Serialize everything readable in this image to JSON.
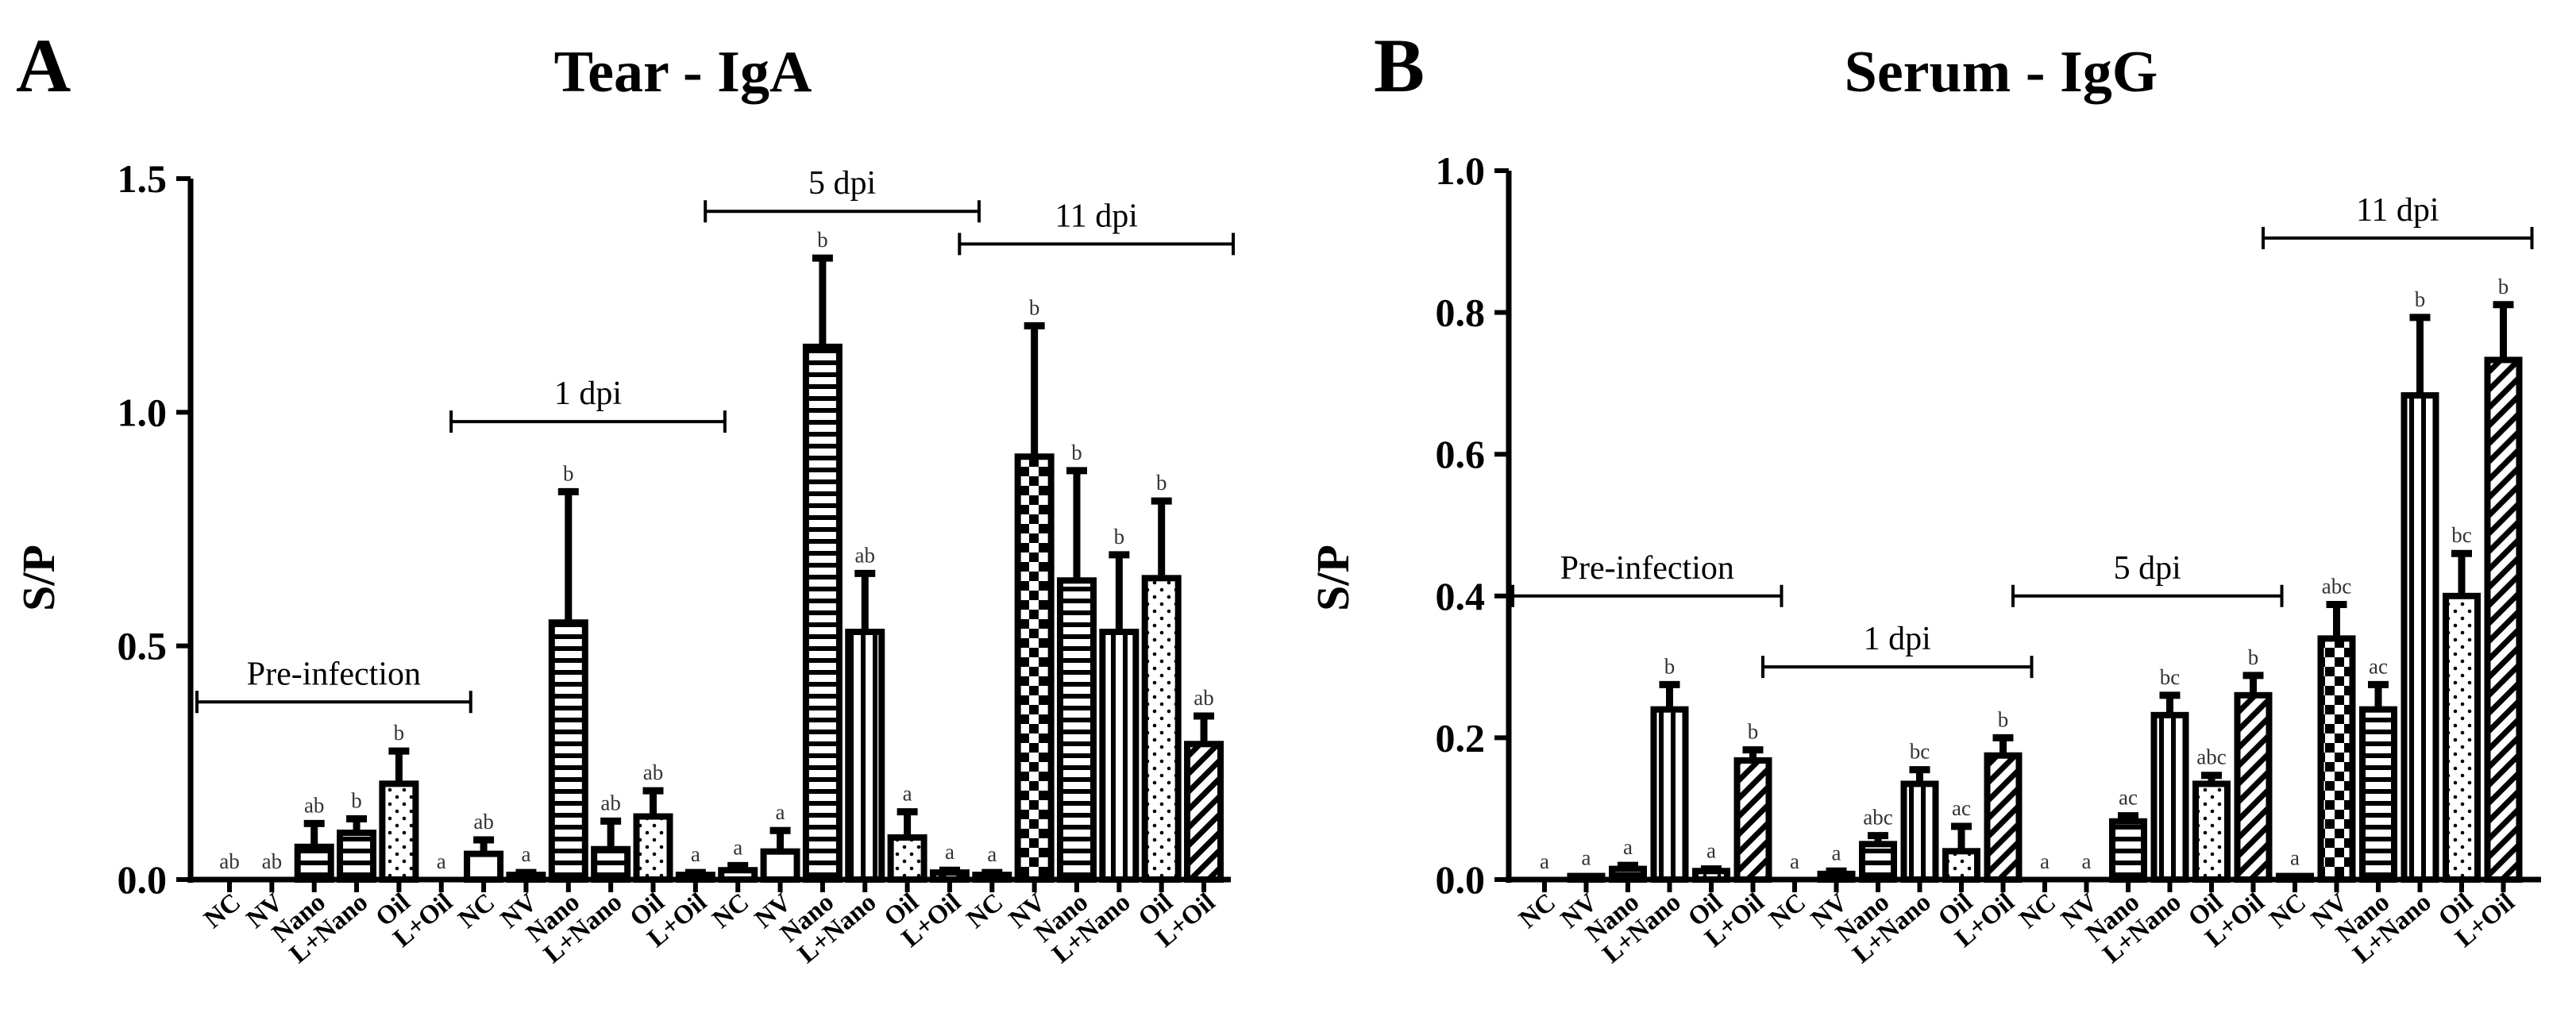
{
  "chart_data": [
    {
      "type": "bar",
      "panel": "A",
      "title": "Tear - IgA",
      "ylabel": "S/P",
      "xlabel": "",
      "ylim": [
        0,
        1.5
      ],
      "yticks": [
        "0.0",
        "0.5",
        "1.0",
        "1.5"
      ],
      "ytick_values": [
        0,
        0.5,
        1.0,
        1.5
      ],
      "categories": [
        "NC",
        "NV",
        "Nano",
        "L+Nano",
        "Oil",
        "L+Oil",
        "NC",
        "NV",
        "Nano",
        "L+Nano",
        "Oil",
        "L+Oil",
        "NC",
        "NV",
        "Nano",
        "L+Nano",
        "Oil",
        "L+Oil",
        "NC",
        "NV",
        "Nano",
        "L+Nano",
        "Oil",
        "L+Oil"
      ],
      "values": [
        0,
        0,
        0.07,
        0.1,
        0.205,
        0,
        0.055,
        0.01,
        0.55,
        0.065,
        0.135,
        0.01,
        0.02,
        0.06,
        1.14,
        0.53,
        0.09,
        0.015,
        0.01,
        0.905,
        0.64,
        0.53,
        0.645,
        0.29
      ],
      "errors": [
        0,
        0,
        0.05,
        0.03,
        0.07,
        0,
        0.03,
        0.005,
        0.28,
        0.06,
        0.055,
        0.005,
        0.01,
        0.045,
        0.19,
        0.125,
        0.055,
        0.005,
        0.005,
        0.28,
        0.235,
        0.165,
        0.165,
        0.06
      ],
      "significance": [
        "ab",
        "ab",
        "ab",
        "b",
        "b",
        "a",
        "ab",
        "a",
        "b",
        "ab",
        "ab",
        "a",
        "a",
        "a",
        "b",
        "ab",
        "a",
        "a",
        "a",
        "b",
        "b",
        "b",
        "b",
        "ab"
      ],
      "patterns": [
        "none",
        "none",
        "hlines",
        "hlines",
        "dots",
        "diag",
        "none",
        "none",
        "hlines",
        "hlines",
        "dots",
        "diag",
        "none",
        "none",
        "hlines",
        "vlines",
        "dots",
        "diag",
        "none",
        "check",
        "hlines",
        "vlines",
        "dots",
        "diag"
      ],
      "groups": [
        {
          "label": "Pre-infection",
          "start": 0,
          "end": 5,
          "level": 0.38
        },
        {
          "label": "1 dpi",
          "start": 6,
          "end": 11,
          "level": 0.98
        },
        {
          "label": "5 dpi",
          "start": 12,
          "end": 17,
          "level": 1.43
        },
        {
          "label": "11 dpi",
          "start": 18,
          "end": 23,
          "level": 1.36
        }
      ]
    },
    {
      "type": "bar",
      "panel": "B",
      "title": "Serum - IgG",
      "ylabel": "S/P",
      "xlabel": "",
      "ylim": [
        0,
        1.0
      ],
      "yticks": [
        "0.0",
        "0.2",
        "0.4",
        "0.6",
        "0.8",
        "1.0"
      ],
      "ytick_values": [
        0,
        0.2,
        0.4,
        0.6,
        0.8,
        1.0
      ],
      "categories": [
        "NC",
        "NV",
        "Nano",
        "L+Nano",
        "Oil",
        "L+Oil",
        "NC",
        "NV",
        "Nano",
        "L+Nano",
        "Oil",
        "L+Oil",
        "NC",
        "NV",
        "Nano",
        "L+Nano",
        "Oil",
        "L+Oil",
        "NC",
        "NV",
        "Nano",
        "L+Nano",
        "Oil",
        "L+Oil"
      ],
      "values": [
        0,
        0.005,
        0.015,
        0.24,
        0.012,
        0.168,
        0,
        0.008,
        0.05,
        0.135,
        0.04,
        0.175,
        0,
        0,
        0.082,
        0.232,
        0.135,
        0.26,
        0.005,
        0.34,
        0.24,
        0.683,
        0.4,
        0.733
      ],
      "errors": [
        0,
        0,
        0.005,
        0.035,
        0.003,
        0.015,
        0,
        0.004,
        0.012,
        0.02,
        0.035,
        0.025,
        0,
        0,
        0.008,
        0.028,
        0.012,
        0.028,
        0,
        0.048,
        0.035,
        0.11,
        0.06,
        0.078
      ],
      "significance": [
        "a",
        "a",
        "a",
        "b",
        "a",
        "b",
        "a",
        "a",
        "abc",
        "bc",
        "ac",
        "b",
        "a",
        "a",
        "ac",
        "bc",
        "abc",
        "b",
        "a",
        "abc",
        "ac",
        "b",
        "bc",
        "b"
      ],
      "patterns": [
        "none",
        "none",
        "hlines",
        "vlines",
        "dots",
        "diag",
        "none",
        "none",
        "hlines",
        "vlines",
        "dots",
        "diag",
        "none",
        "none",
        "hlines",
        "vlines",
        "dots",
        "diag",
        "none",
        "check",
        "hlines",
        "vlines",
        "dots",
        "diag"
      ],
      "groups": [
        {
          "label": "Pre-infection",
          "start": 0,
          "end": 5,
          "level": 0.4
        },
        {
          "label": "1 dpi",
          "start": 6,
          "end": 11,
          "level": 0.3
        },
        {
          "label": "5 dpi",
          "start": 12,
          "end": 17,
          "level": 0.4
        },
        {
          "label": "11 dpi",
          "start": 18,
          "end": 23,
          "level": 0.905
        }
      ]
    }
  ]
}
